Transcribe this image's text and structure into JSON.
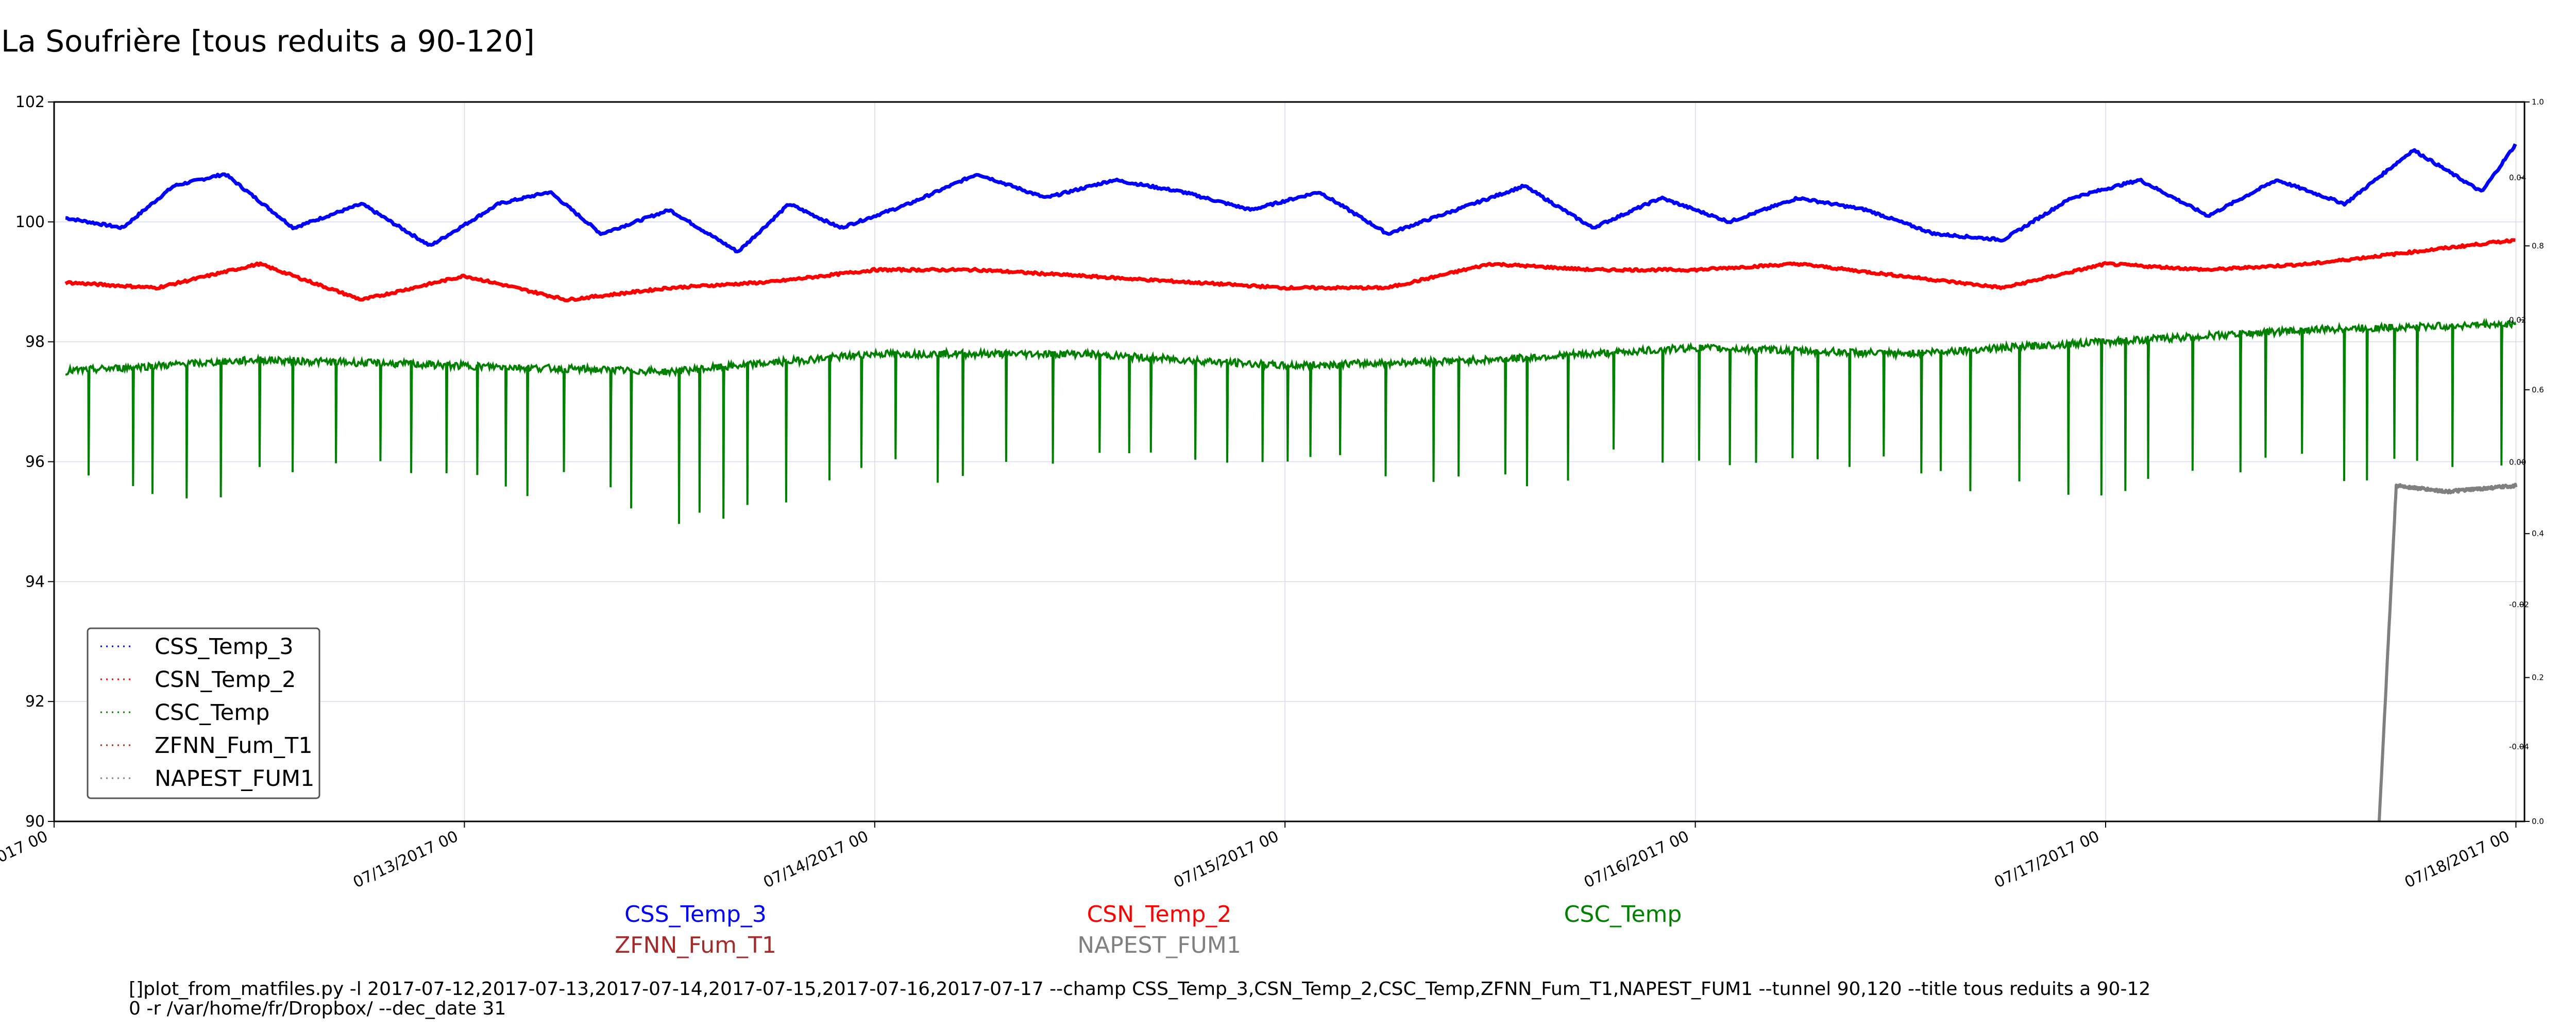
{
  "chart_data": {
    "type": "line",
    "title": "La Soufrière [tous reduits a 90-120]",
    "xlabel": "",
    "ylabel": "",
    "x_range": [
      "2017-07-12 00:00",
      "2017-07-18 00:30"
    ],
    "ylim": [
      90,
      102
    ],
    "y_ticks": [
      90,
      92,
      94,
      96,
      98,
      100,
      102
    ],
    "x_ticks": [
      "07/12/2017 00",
      "07/13/2017 00",
      "07/14/2017 00",
      "07/15/2017 00",
      "07/16/2017 00",
      "07/17/2017 00",
      "07/18/2017 00"
    ],
    "right_axis_outer": {
      "ylim": [
        0.0,
        1.0
      ],
      "ticks": [
        "0.0",
        "0.2",
        "0.4",
        "0.6",
        "0.8",
        "1.0"
      ]
    },
    "right_axis_inner": {
      "ticks": [
        "-0.04",
        "-0.02",
        "0.00",
        "0.02",
        "0.04"
      ]
    },
    "grid": true,
    "legend_position": "lower-left",
    "legend": [
      "CSS_Temp_3",
      "CSN_Temp_2",
      "CSC_Temp",
      "ZFNN_Fum_T1",
      "NAPEST_FUM1"
    ],
    "series": [
      {
        "name": "CSS_Temp_3",
        "color": "#0000ff",
        "x": [
          "2017-07-12 00:00",
          "2017-07-12 04:00",
          "2017-07-12 07:00",
          "2017-07-12 10:00",
          "2017-07-12 14:00",
          "2017-07-12 18:00",
          "2017-07-12 22:00",
          "2017-07-13 02:00",
          "2017-07-13 05:00",
          "2017-07-13 08:00",
          "2017-07-13 12:00",
          "2017-07-13 16:00",
          "2017-07-13 19:00",
          "2017-07-13 22:00",
          "2017-07-14 02:00",
          "2017-07-14 06:00",
          "2017-07-14 10:00",
          "2017-07-14 14:00",
          "2017-07-14 18:00",
          "2017-07-14 22:00",
          "2017-07-15 02:00",
          "2017-07-15 06:00",
          "2017-07-15 10:00",
          "2017-07-15 14:00",
          "2017-07-15 18:00",
          "2017-07-15 22:00",
          "2017-07-16 02:00",
          "2017-07-16 06:00",
          "2017-07-16 10:00",
          "2017-07-16 14:00",
          "2017-07-16 18:00",
          "2017-07-16 22:00",
          "2017-07-17 02:00",
          "2017-07-17 06:00",
          "2017-07-17 10:00",
          "2017-07-17 14:00",
          "2017-07-17 18:00",
          "2017-07-17 22:00",
          "2017-07-18 00:00"
        ],
        "y": [
          100.1,
          99.9,
          100.6,
          100.8,
          99.9,
          100.3,
          99.6,
          100.3,
          100.5,
          99.8,
          100.2,
          99.5,
          100.3,
          99.9,
          100.3,
          100.8,
          100.4,
          100.7,
          100.5,
          100.2,
          100.5,
          99.8,
          100.2,
          100.6,
          99.9,
          100.4,
          100.0,
          100.4,
          100.2,
          99.8,
          99.7,
          100.4,
          100.7,
          100.1,
          100.7,
          100.3,
          101.2,
          100.5,
          101.3
        ]
      },
      {
        "name": "CSN_Temp_2",
        "color": "#ff0000",
        "x": [
          "2017-07-12 00:00",
          "2017-07-12 06:00",
          "2017-07-12 12:00",
          "2017-07-12 18:00",
          "2017-07-13 00:00",
          "2017-07-13 06:00",
          "2017-07-13 12:00",
          "2017-07-13 18:00",
          "2017-07-14 00:00",
          "2017-07-14 06:00",
          "2017-07-14 12:00",
          "2017-07-14 18:00",
          "2017-07-15 00:00",
          "2017-07-15 06:00",
          "2017-07-15 12:00",
          "2017-07-15 18:00",
          "2017-07-16 00:00",
          "2017-07-16 06:00",
          "2017-07-16 12:00",
          "2017-07-16 18:00",
          "2017-07-17 00:00",
          "2017-07-17 06:00",
          "2017-07-17 12:00",
          "2017-07-17 18:00",
          "2017-07-18 00:00"
        ],
        "y": [
          99.0,
          98.9,
          99.3,
          98.7,
          99.1,
          98.7,
          98.9,
          99.0,
          99.2,
          99.2,
          99.1,
          99.0,
          98.9,
          98.9,
          99.3,
          99.2,
          99.2,
          99.3,
          99.1,
          98.9,
          99.3,
          99.2,
          99.3,
          99.5,
          99.7
        ]
      },
      {
        "name": "CSC_Temp",
        "color": "#008000",
        "x": [
          "2017-07-12 00:00",
          "2017-07-12 12:00",
          "2017-07-13 00:00",
          "2017-07-13 12:00",
          "2017-07-14 00:00",
          "2017-07-14 12:00",
          "2017-07-15 00:00",
          "2017-07-15 12:00",
          "2017-07-16 00:00",
          "2017-07-16 12:00",
          "2017-07-17 00:00",
          "2017-07-17 12:00",
          "2017-07-18 00:00"
        ],
        "y": [
          97.5,
          97.7,
          97.6,
          97.5,
          97.8,
          97.8,
          97.6,
          97.7,
          97.9,
          97.8,
          98.0,
          98.2,
          98.3
        ],
        "dip_min": [
          95.3,
          95.7,
          95.4,
          94.9,
          95.6,
          95.7,
          95.7,
          95.5,
          95.8,
          95.6,
          95.4,
          95.7,
          95.6
        ]
      },
      {
        "name": "ZFNN_Fum_T1",
        "color": "#a52a2a",
        "x": [],
        "y": []
      },
      {
        "name": "NAPEST_FUM1",
        "color": "#808080",
        "x": [
          "2017-07-17 16:00",
          "2017-07-17 17:00",
          "2017-07-17 20:00",
          "2017-07-18 00:00"
        ],
        "y": [
          90.0,
          95.6,
          95.5,
          95.6
        ]
      }
    ]
  },
  "captions": [
    {
      "label": "CSS_Temp_3",
      "color": "#0000ff"
    },
    {
      "label": "CSN_Temp_2",
      "color": "#ff0000"
    },
    {
      "label": "CSC_Temp",
      "color": "#008000"
    },
    {
      "label": "ZFNN_Fum_T1",
      "color": "#a52a2a"
    },
    {
      "label": "NAPEST_FUM1",
      "color": "#808080"
    }
  ],
  "command": {
    "line1": "[]plot_from_matfiles.py -l 2017-07-12,2017-07-13,2017-07-14,2017-07-15,2017-07-16,2017-07-17 --champ CSS_Temp_3,CSN_Temp_2,CSC_Temp,ZFNN_Fum_T1,NAPEST_FUM1 --tunnel 90,120 --title tous reduits a 90-12",
    "line2": "0 -r /var/home/fr/Dropbox/ --dec_date 31"
  }
}
